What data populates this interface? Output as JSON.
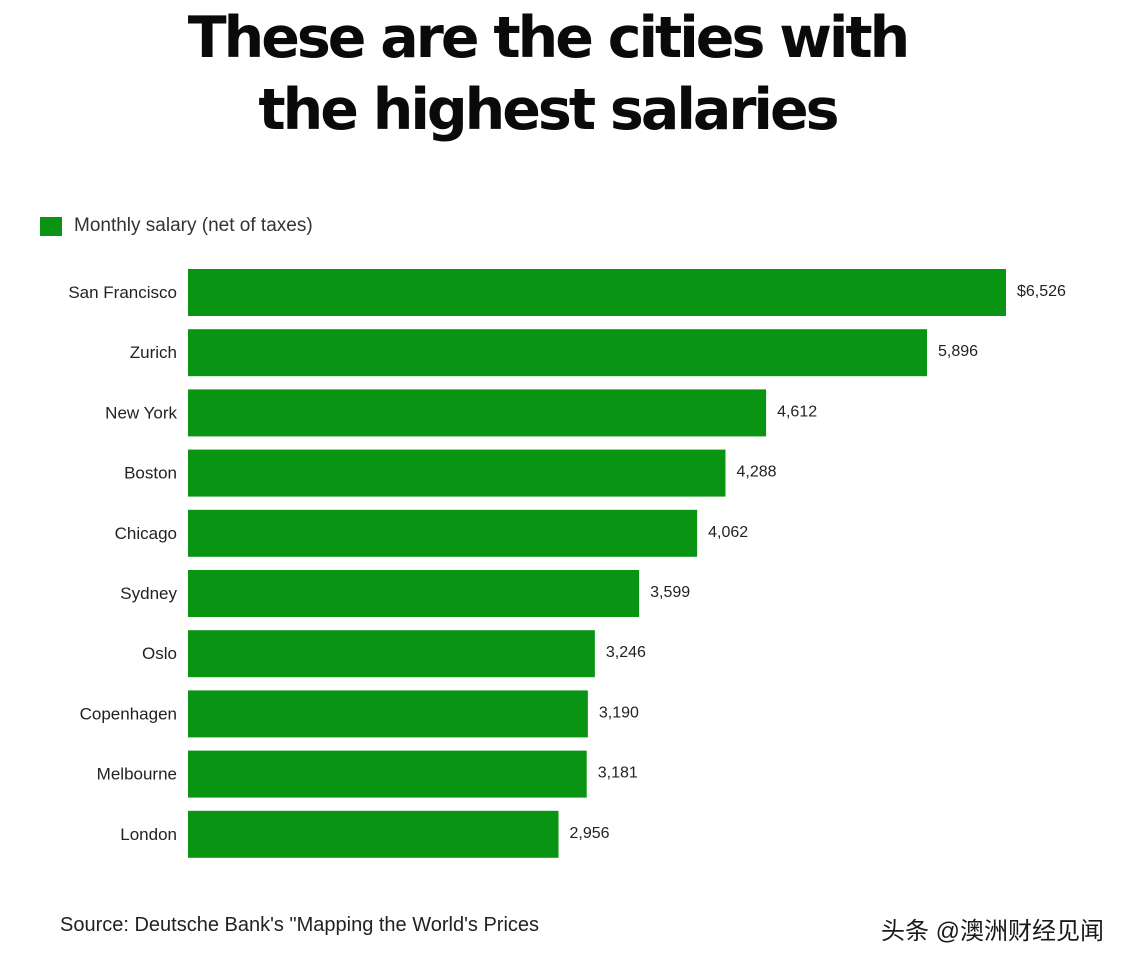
{
  "header": {
    "title_line1": "These are the cities with",
    "title_line2": "the highest salaries"
  },
  "legend": {
    "label": "Monthly salary (net of taxes)"
  },
  "chart_data": {
    "type": "bar",
    "orientation": "horizontal",
    "categories": [
      "San Francisco",
      "Zurich",
      "New York",
      "Boston",
      "Chicago",
      "Sydney",
      "Oslo",
      "Copenhagen",
      "Melbourne",
      "London"
    ],
    "values": [
      6526,
      5896,
      4612,
      4288,
      4062,
      3599,
      3246,
      3190,
      3181,
      2956
    ],
    "value_labels": [
      "$6,526",
      "5,896",
      "4,612",
      "4,288",
      "4,062",
      "3,599",
      "3,246",
      "3,190",
      "3,181",
      "2,956"
    ],
    "series": [
      {
        "name": "Monthly salary (net of taxes)",
        "values": [
          6526,
          5896,
          4612,
          4288,
          4062,
          3599,
          3246,
          3190,
          3181,
          2956
        ]
      }
    ],
    "xlim": [
      0,
      6526
    ],
    "grid": false,
    "legend_position": "top-left",
    "bar_color": "#0a9414"
  },
  "footer": {
    "source": "Source: Deutsche Bank's \"Mapping the World's Prices"
  },
  "watermark": {
    "text": "头条 @澳洲财经见闻"
  }
}
